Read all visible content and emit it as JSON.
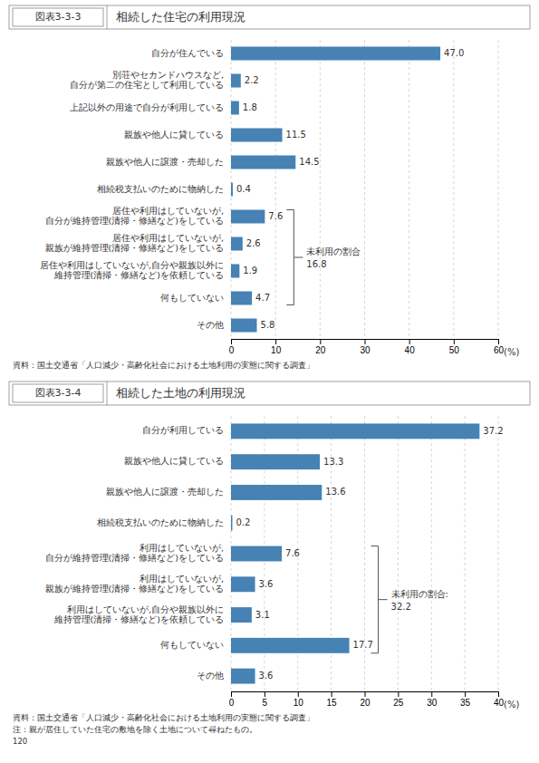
{
  "chart_data": [
    {
      "type": "bar",
      "orientation": "horizontal",
      "title": "相続した住宅の利用現況",
      "subtitle": "図表3-3-3",
      "categories": [
        "自分が住んでいる",
        "別荘やセカンドハウスなど,\n自分が第二の住宅として利用している",
        "上記以外の用途で自分が利用している",
        "親族や他人に貸している",
        "親族や他人に譲渡・売却した",
        "相続税支払いのために物納した",
        "居住や利用はしていないが,\n自分が維持管理(清掃・修繕など)をしている",
        "居住や利用はしていないが,\n親族が維持管理(清掃・修繕など)をしている",
        "居住や利用はしていないが,自分や親族以外に\n維持管理(清掃・修繕など)を依頼している",
        "何もしていない",
        "その他"
      ],
      "values": [
        47.0,
        2.2,
        1.8,
        11.5,
        14.5,
        0.4,
        7.6,
        2.6,
        1.9,
        4.7,
        5.8
      ],
      "value_labels": [
        "47.0",
        "2.2",
        "1.8",
        "11.5",
        "14.5",
        "0.4",
        "7.6",
        "2.6",
        "1.9",
        "4.7",
        "5.8"
      ],
      "data_labels": true,
      "color": "steelblue",
      "xlim": [
        0,
        60
      ],
      "xticks": [
        0,
        10,
        20,
        30,
        40,
        50,
        60
      ],
      "xlabel": "(%)",
      "grid": true,
      "annotations": [
        {
          "text": "未利用の割合",
          "label": "16.8",
          "span": [
            6,
            9
          ]
        },
        {
          "text": "資料：国土交通省「人口減少・高齢化社会における土地利用の実態に関する調査」"
        }
      ]
    },
    {
      "type": "bar",
      "orientation": "horizontal",
      "title": "相続した土地の利用現況",
      "subtitle": "図表3-3-4",
      "categories": [
        "自分が利用している",
        "親族や他人に貸している",
        "親族や他人に譲渡・売却した",
        "相続税支払いのために物納した",
        "利用はしていないが,\n自分が維持管理(清掃・修繕など)をしている",
        "利用はしていないが,\n親族が維持管理(清掃・修繕など)をしている",
        "利用はしていないが,自分や親族以外に\n維持管理(清掃・修繕など)を依頼している",
        "何もしていない",
        "その他"
      ],
      "values": [
        37.2,
        13.3,
        13.6,
        0.2,
        7.6,
        3.6,
        3.1,
        17.7,
        3.6
      ],
      "data_labels": true,
      "color": "steelblue",
      "xlim": [
        0,
        40
      ],
      "xticks": [
        0,
        5,
        10,
        15,
        20,
        25,
        30,
        35,
        40
      ],
      "xlabel": "(%)",
      "grid": true,
      "annotations": [
        {
          "text": "未利用の割合:",
          "label": "32.2",
          "span": [
            4,
            7
          ]
        },
        {
          "text": "資料：国土交通省「人口減少・高齢化社会における土地利用の実態に関する調査」"
        },
        {
          "text": "注：親が居住していた住宅の敷地を除く土地について尋ねたもの。"
        },
        {
          "text": "120"
        }
      ]
    }
  ]
}
